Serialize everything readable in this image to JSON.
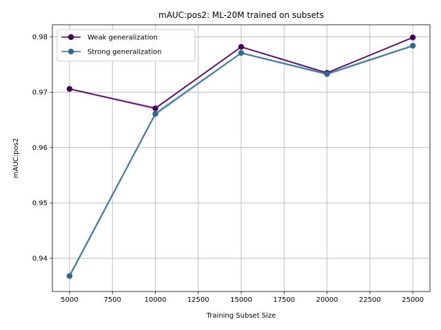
{
  "chart_data": {
    "type": "line",
    "title": "mAUC:pos2: ML-20M trained on subsets",
    "xlabel": "Training Subset Size",
    "ylabel": "mAUC:pos2",
    "x": [
      5000,
      10000,
      15000,
      20000,
      25000
    ],
    "xlim": [
      4000,
      26000
    ],
    "ylim": [
      0.934,
      0.9822
    ],
    "xticks": [
      5000,
      7500,
      10000,
      12500,
      15000,
      17500,
      20000,
      22500,
      25000
    ],
    "xtick_labels": [
      "5000",
      "7500",
      "10000",
      "12500",
      "15000",
      "17500",
      "20000",
      "22500",
      "25000"
    ],
    "yticks": [
      0.94,
      0.95,
      0.96,
      0.97,
      0.98
    ],
    "ytick_labels": [
      "0.94",
      "0.95",
      "0.96",
      "0.97",
      "0.98"
    ],
    "grid": true,
    "legend_position": "top-left",
    "series": [
      {
        "name": "Weak generalization",
        "color": "#440154",
        "band_color": "#c9a9cf",
        "values": [
          0.9706,
          0.9671,
          0.9782,
          0.9735,
          0.9799
        ],
        "band": [
          0.0002,
          0.0003,
          0.0002,
          0.0002,
          0.0002
        ]
      },
      {
        "name": "Strong generalization",
        "color": "#31688e",
        "band_color": "#9dbcd3",
        "values": [
          0.9368,
          0.9661,
          0.9771,
          0.9733,
          0.9784
        ],
        "band": [
          0.0005,
          0.0004,
          0.0002,
          0.0003,
          0.0002
        ]
      }
    ]
  }
}
